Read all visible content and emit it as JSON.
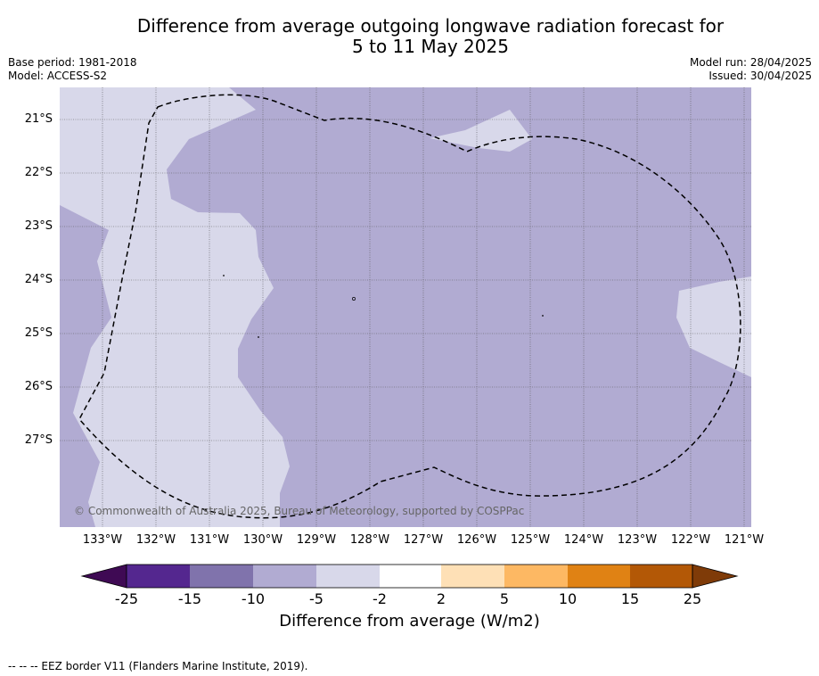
{
  "title_line1": "Difference from average outgoing longwave radiation forecast for",
  "title_line2": "5 to 11 May 2025",
  "base_period": "Base period: 1981-2018",
  "model": "Model: ACCESS-S2",
  "model_run": "Model run: 28/04/2025",
  "issued": "Issued: 30/04/2025",
  "map": {
    "latitudes": [
      "21°S",
      "22°S",
      "23°S",
      "24°S",
      "25°S",
      "26°S",
      "27°S"
    ],
    "longitudes": [
      "133°W",
      "132°W",
      "131°W",
      "130°W",
      "129°W",
      "128°W",
      "127°W",
      "126°W",
      "125°W",
      "124°W",
      "123°W",
      "122°W",
      "121°W"
    ],
    "copyright": "© Commonwealth of Australia 2025, Bureau of Meteorology, supported by COSPPac",
    "colors": {
      "light": "#d8d8ea",
      "medium": "#b1abd2"
    }
  },
  "legend": {
    "title": "Difference from average (W/m2)",
    "ticks": [
      "-25",
      "-15",
      "-10",
      "-5",
      "-2",
      "2",
      "5",
      "10",
      "15",
      "25"
    ],
    "colors": [
      "#3f0a54",
      "#54278f",
      "#8073ac",
      "#b1abd2",
      "#d8d8ea",
      "#ffffff",
      "#fee0b6",
      "#fdb863",
      "#e08214",
      "#b35806",
      "#7f3b08"
    ]
  },
  "footnote": "--  --  -- EEZ border V11 (Flanders Marine Institute, 2019)."
}
